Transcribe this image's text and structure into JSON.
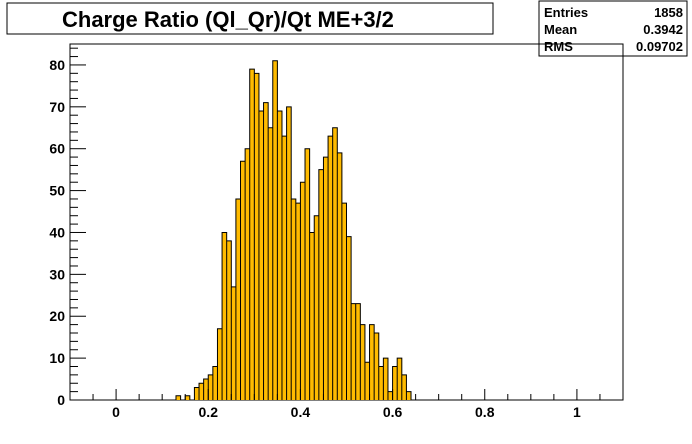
{
  "title": "Charge Ratio (Ql_Qr)/Qt ME+3/2",
  "stats": {
    "rows": [
      {
        "label": "Entries",
        "value": "1858"
      },
      {
        "label": "Mean",
        "value": "0.3942"
      },
      {
        "label": "RMS",
        "value": "0.09702"
      }
    ]
  },
  "colors": {
    "fill": "#FFBB00",
    "outline": "#000000",
    "background": "#FFFFFF"
  },
  "chart_data": {
    "type": "bar",
    "title": "Charge Ratio (Ql_Qr)/Qt ME+3/2",
    "xlabel": "",
    "ylabel": "",
    "xlim": [
      -0.1,
      1.1
    ],
    "ylim": [
      0,
      85
    ],
    "bin_width": 0.01,
    "grid": false,
    "legend": "none",
    "x_ticks": [
      0,
      0.2,
      0.4,
      0.6,
      0.8,
      1
    ],
    "x_tick_labels": [
      "0",
      "0.2",
      "0.4",
      "0.6",
      "0.8",
      "1"
    ],
    "y_ticks": [
      0,
      10,
      20,
      30,
      40,
      50,
      60,
      70,
      80
    ],
    "y_tick_labels": [
      "0",
      "10",
      "20",
      "30",
      "40",
      "50",
      "60",
      "70",
      "80"
    ],
    "bin_starts": [
      0.13,
      0.15,
      0.17,
      0.18,
      0.19,
      0.2,
      0.21,
      0.22,
      0.23,
      0.24,
      0.25,
      0.26,
      0.27,
      0.28,
      0.29,
      0.3,
      0.31,
      0.32,
      0.33,
      0.34,
      0.35,
      0.36,
      0.37,
      0.38,
      0.39,
      0.4,
      0.41,
      0.42,
      0.43,
      0.44,
      0.45,
      0.46,
      0.47,
      0.48,
      0.49,
      0.5,
      0.51,
      0.52,
      0.53,
      0.54,
      0.55,
      0.56,
      0.57,
      0.58,
      0.59,
      0.6,
      0.61,
      0.62,
      0.63,
      0.64,
      0.65
    ],
    "values": [
      1,
      1,
      3,
      4,
      5,
      6,
      8,
      17,
      40,
      38,
      27,
      48,
      57,
      60,
      79,
      78,
      69,
      71,
      65,
      81,
      69,
      63,
      70,
      48,
      47,
      52,
      60,
      40,
      44,
      55,
      58,
      63,
      65,
      59,
      47,
      39,
      23,
      23,
      18,
      9,
      18,
      16,
      8,
      10,
      2,
      8,
      10,
      6,
      2,
      0,
      0
    ]
  }
}
